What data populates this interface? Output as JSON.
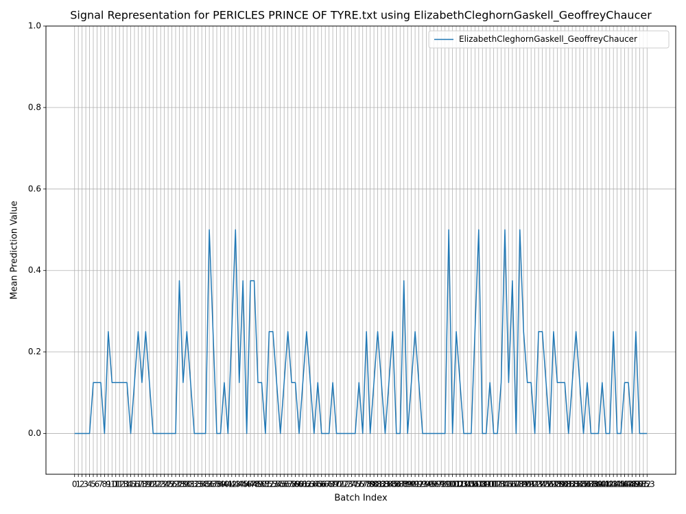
{
  "chart_data": {
    "type": "line",
    "title": "Signal Representation for PERICLES PRINCE OF TYRE.txt using ElizabethCleghornGaskell_GeoffreyChaucer",
    "xlabel": "Batch Index",
    "ylabel": "Mean Prediction Value",
    "x": [
      0,
      1,
      2,
      3,
      4,
      5,
      6,
      7,
      8,
      9,
      10,
      11,
      12,
      13,
      14,
      15,
      16,
      17,
      18,
      19,
      20,
      21,
      22,
      23,
      24,
      25,
      26,
      27,
      28,
      29,
      30,
      31,
      32,
      33,
      34,
      35,
      36,
      37,
      38,
      39,
      40,
      41,
      42,
      43,
      44,
      45,
      46,
      47,
      48,
      49,
      50,
      51,
      52,
      53,
      54,
      55,
      56,
      57,
      58,
      59,
      60,
      61,
      62,
      63,
      64,
      65,
      66,
      67,
      68,
      69,
      70,
      71,
      72,
      73,
      74,
      75,
      76,
      77,
      78,
      79,
      80,
      81,
      82,
      83,
      84,
      85,
      86,
      87,
      88,
      89,
      90,
      91,
      92,
      93,
      94,
      95,
      96,
      97,
      98,
      99,
      100,
      101,
      102,
      103,
      104,
      105,
      106,
      107,
      108,
      109,
      110,
      111,
      112,
      113,
      114,
      115,
      116,
      117,
      118,
      119,
      120,
      121,
      122,
      123,
      124,
      125,
      126,
      127,
      128,
      129,
      130,
      131,
      132,
      133,
      134,
      135,
      136,
      137,
      138,
      139,
      140,
      141,
      142,
      143,
      144,
      145,
      146,
      147,
      148,
      149,
      150,
      151,
      152,
      153
    ],
    "series": [
      {
        "name": "ElizabethCleghornGaskell_GeoffreyChaucer",
        "color": "#1f77b4",
        "values": [
          0,
          0,
          0,
          0,
          0,
          0.125,
          0.125,
          0.125,
          0,
          0.25,
          0.125,
          0.125,
          0.125,
          0.125,
          0.125,
          0,
          0.125,
          0.25,
          0.125,
          0.25,
          0.125,
          0,
          0,
          0,
          0,
          0,
          0,
          0,
          0.375,
          0.125,
          0.25,
          0.125,
          0,
          0,
          0,
          0,
          0.5,
          0.25,
          0,
          0,
          0.125,
          0,
          0.25,
          0.5,
          0.125,
          0.375,
          0,
          0.375,
          0.375,
          0.125,
          0.125,
          0,
          0.25,
          0.25,
          0.125,
          0,
          0.125,
          0.25,
          0.125,
          0.125,
          0,
          0.125,
          0.25,
          0.125,
          0,
          0.125,
          0,
          0,
          0,
          0.125,
          0,
          0,
          0,
          0,
          0,
          0,
          0.125,
          0,
          0.25,
          0,
          0.125,
          0.25,
          0.125,
          0,
          0.125,
          0.25,
          0,
          0,
          0.375,
          0,
          0.125,
          0.25,
          0.125,
          0,
          0,
          0,
          0,
          0,
          0,
          0,
          0.5,
          0,
          0.25,
          0.125,
          0,
          0,
          0,
          0.25,
          0.5,
          0,
          0,
          0.125,
          0,
          0,
          0.125,
          0.5,
          0.125,
          0.375,
          0,
          0.5,
          0.25,
          0.125,
          0.125,
          0,
          0.25,
          0.25,
          0.125,
          0,
          0.25,
          0.125,
          0.125,
          0.125,
          0,
          0.125,
          0.25,
          0.125,
          0,
          0.125,
          0,
          0,
          0,
          0.125,
          0,
          0,
          0.25,
          0,
          0,
          0.125,
          0.125,
          0,
          0.25,
          0,
          0,
          0
        ]
      }
    ],
    "xlim": [
      -7.65,
      160.65
    ],
    "ylim": [
      -0.1,
      1.0
    ],
    "xticks": [
      0,
      1,
      2,
      3,
      4,
      5,
      6,
      7,
      8,
      9,
      10,
      11,
      12,
      13,
      14,
      15,
      16,
      17,
      18,
      19,
      20,
      21,
      22,
      23,
      24,
      25,
      26,
      27,
      28,
      29,
      30,
      31,
      32,
      33,
      34,
      35,
      36,
      37,
      38,
      39,
      40,
      41,
      42,
      43,
      44,
      45,
      46,
      47,
      48,
      49,
      50,
      51,
      52,
      53,
      54,
      55,
      56,
      57,
      58,
      59,
      60,
      61,
      62,
      63,
      64,
      65,
      66,
      67,
      68,
      69,
      70,
      71,
      72,
      73,
      74,
      75,
      76,
      77,
      78,
      79,
      80,
      81,
      82,
      83,
      84,
      85,
      86,
      87,
      88,
      89,
      90,
      91,
      92,
      93,
      94,
      95,
      96,
      97,
      98,
      99,
      100,
      101,
      102,
      103,
      104,
      105,
      106,
      107,
      108,
      109,
      110,
      111,
      112,
      113,
      114,
      115,
      116,
      117,
      118,
      119,
      120,
      121,
      122,
      123,
      124,
      125,
      126,
      127,
      128,
      129,
      130,
      131,
      132,
      133,
      134,
      135,
      136,
      137,
      138,
      139,
      140,
      141,
      142,
      143,
      144,
      145,
      146,
      147,
      148,
      149,
      150,
      151,
      152,
      153
    ],
    "yticks": [
      {
        "value": 0,
        "label": "0.0"
      },
      {
        "value": 0.2,
        "label": "0.2"
      },
      {
        "value": 0.4,
        "label": "0.4"
      },
      {
        "value": 0.6,
        "label": "0.6"
      },
      {
        "value": 0.8,
        "label": "0.8"
      },
      {
        "value": 1.0,
        "label": "1.0"
      }
    ],
    "grid": true,
    "legend": "upper right"
  }
}
